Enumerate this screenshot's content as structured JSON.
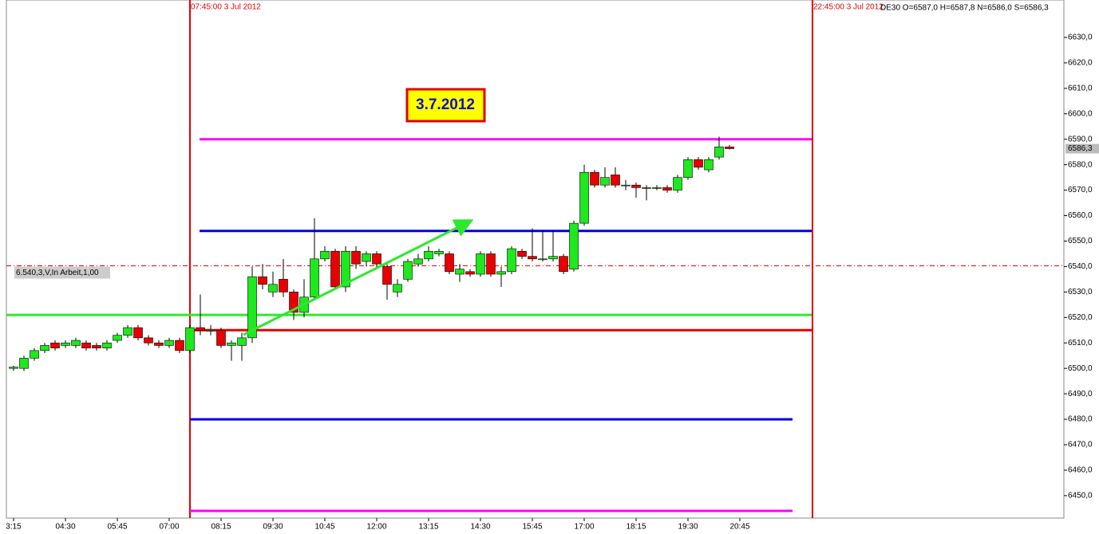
{
  "chart_data": {
    "type": "candlestick",
    "legend": "DE30 O=6587,0 H=6587,8 N=6586,0 S=6586,3",
    "annotation": "3.7.2012",
    "categories": [
      "3:15",
      null,
      null,
      null,
      null,
      "04:30",
      null,
      null,
      null,
      null,
      "05:45",
      null,
      null,
      null,
      null,
      "07:00",
      null,
      null,
      null,
      null,
      "08:15",
      null,
      null,
      null,
      null,
      "09:30",
      null,
      null,
      null,
      null,
      "10:45",
      null,
      null,
      null,
      null,
      "12:00",
      null,
      null,
      null,
      null,
      "13:15",
      null,
      null,
      null,
      null,
      "14:30",
      null,
      null,
      null,
      null,
      "15:45",
      null,
      null,
      null,
      null,
      "17:00",
      null,
      null,
      null,
      null,
      "18:15",
      null,
      null,
      null,
      null,
      "19:30",
      null,
      null,
      null,
      null,
      "20:45"
    ],
    "open": [
      6500,
      6500,
      6504,
      6507,
      6510,
      6509,
      6509,
      6510,
      6509,
      6508,
      6511,
      6513,
      6516,
      6512,
      6510,
      6509,
      6511,
      6507,
      6516,
      6515,
      6515,
      6509,
      6509,
      6512,
      6536,
      6530,
      6535,
      6530,
      6522,
      6528,
      6543,
      6546,
      6532,
      6546,
      6542,
      6545,
      6540,
      6530,
      6535,
      6541,
      6543,
      6545,
      6545,
      6537,
      6538,
      6537,
      6545,
      6537,
      6538,
      6546,
      6544,
      6543,
      6543,
      6544,
      6539,
      6557,
      6577,
      6572,
      6576,
      6572,
      6572,
      6571,
      6571,
      6571,
      6570,
      6575,
      6582,
      6578,
      6583,
      6587,
      null
    ],
    "high": [
      6501,
      6505,
      6508,
      6510,
      6511,
      6511,
      6512,
      6511,
      6510,
      6511,
      6514,
      6517,
      6517,
      6513,
      6511,
      6512,
      6512,
      6517,
      6529,
      6517,
      6516,
      6511,
      6514,
      6540,
      6541,
      6538,
      6543,
      6531,
      6535,
      6559,
      6548,
      6547,
      6548,
      6548,
      6546,
      6546,
      6541,
      6535,
      6543,
      6545,
      6548,
      6547,
      6546,
      6541,
      6539,
      6546,
      6546,
      6540,
      6548,
      6547,
      6555,
      6554,
      6554,
      6545,
      6558,
      6580,
      6578,
      6579,
      6579,
      6574,
      6573,
      6572,
      6572,
      6572,
      6576,
      6583,
      6583,
      6583,
      6591,
      6587.8,
      null
    ],
    "low": [
      6499,
      6499,
      6503,
      6506,
      6507,
      6508,
      6508,
      6507,
      6507,
      6507,
      6510,
      6512,
      6511,
      6509,
      6508,
      6508,
      6506,
      6506,
      6513,
      6513,
      6508,
      6503,
      6503,
      6510,
      6531,
      6528,
      6528,
      6519,
      6520,
      6527,
      6542,
      6531,
      6530,
      6539,
      6540,
      6539,
      6527,
      6528,
      6534,
      6540,
      6542,
      6544,
      6537,
      6534,
      6536,
      6536,
      6536,
      6532,
      6537,
      6543,
      6542,
      6542,
      6542,
      6537,
      6538,
      6556,
      6571,
      6571,
      6571,
      6570,
      6567,
      6566,
      6570,
      6569,
      6569,
      6574,
      6578,
      6577,
      6582,
      6586,
      null
    ],
    "close": [
      6500.5,
      6504,
      6507,
      6509,
      6508,
      6510,
      6511,
      6508,
      6508,
      6510,
      6513,
      6516,
      6512,
      6510,
      6509,
      6511,
      6507,
      6516,
      6515,
      6515,
      6509,
      6510,
      6512,
      6536,
      6533,
      6533,
      6530,
      6522,
      6528,
      6543,
      6546,
      6532,
      6546,
      6541,
      6545,
      6541,
      6533,
      6533,
      6542,
      6543,
      6546,
      6546,
      6538,
      6539,
      6537,
      6545,
      6537,
      6538,
      6547,
      6544,
      6543,
      6543,
      6544,
      6538,
      6557,
      6577,
      6572,
      6575,
      6572,
      6572,
      6571,
      6571,
      6571,
      6570,
      6575,
      6582,
      6579,
      6582,
      6587,
      6586.3,
      null
    ],
    "up_color": "#1ee81e",
    "down_color": "#e80000",
    "ylim": [
      6441.2,
      6644.7
    ],
    "yticks": [
      {
        "value": 6450,
        "label": "6450,0"
      },
      {
        "value": 6460,
        "label": "6460,0"
      },
      {
        "value": 6470,
        "label": "6470,0"
      },
      {
        "value": 6480,
        "label": "6480,0"
      },
      {
        "value": 6490,
        "label": "6490,0"
      },
      {
        "value": 6500,
        "label": "6500,0"
      },
      {
        "value": 6510,
        "label": "6510,0"
      },
      {
        "value": 6520,
        "label": "6520,0"
      },
      {
        "value": 6530,
        "label": "6530,0"
      },
      {
        "value": 6540,
        "label": "6540,0"
      },
      {
        "value": 6550,
        "label": "6550,0"
      },
      {
        "value": 6560,
        "label": "6560,0"
      },
      {
        "value": 6570,
        "label": "6570,0"
      },
      {
        "value": 6580,
        "label": "6580,0"
      },
      {
        "value": 6590,
        "label": "6590,0"
      },
      {
        "value": 6600,
        "label": "6600,0"
      },
      {
        "value": 6610,
        "label": "6610,0"
      },
      {
        "value": 6620,
        "label": "6620,0"
      },
      {
        "value": 6630,
        "label": "6630,0"
      }
    ],
    "last_price": {
      "value": 6586.3,
      "label": "6586,3"
    },
    "order_line": {
      "value": 6540.3,
      "label": "6.540,3,V,In Arbeit,1,00",
      "color": "#e00000"
    },
    "levels": [
      {
        "value": 6590,
        "color": "#ff00ff"
      },
      {
        "value": 6554,
        "color": "#0000e0"
      },
      {
        "value": 6521,
        "color": "#2ee82e"
      },
      {
        "value": 6515,
        "color": "#e80000"
      },
      {
        "value": 6480,
        "color": "#0000e0"
      },
      {
        "value": 6444,
        "color": "#ff00ff"
      }
    ],
    "markers": [
      {
        "label": "07:45:00 3 Jul 2012"
      },
      {
        "label": "22:45:00 3 Jul 2012"
      }
    ]
  }
}
